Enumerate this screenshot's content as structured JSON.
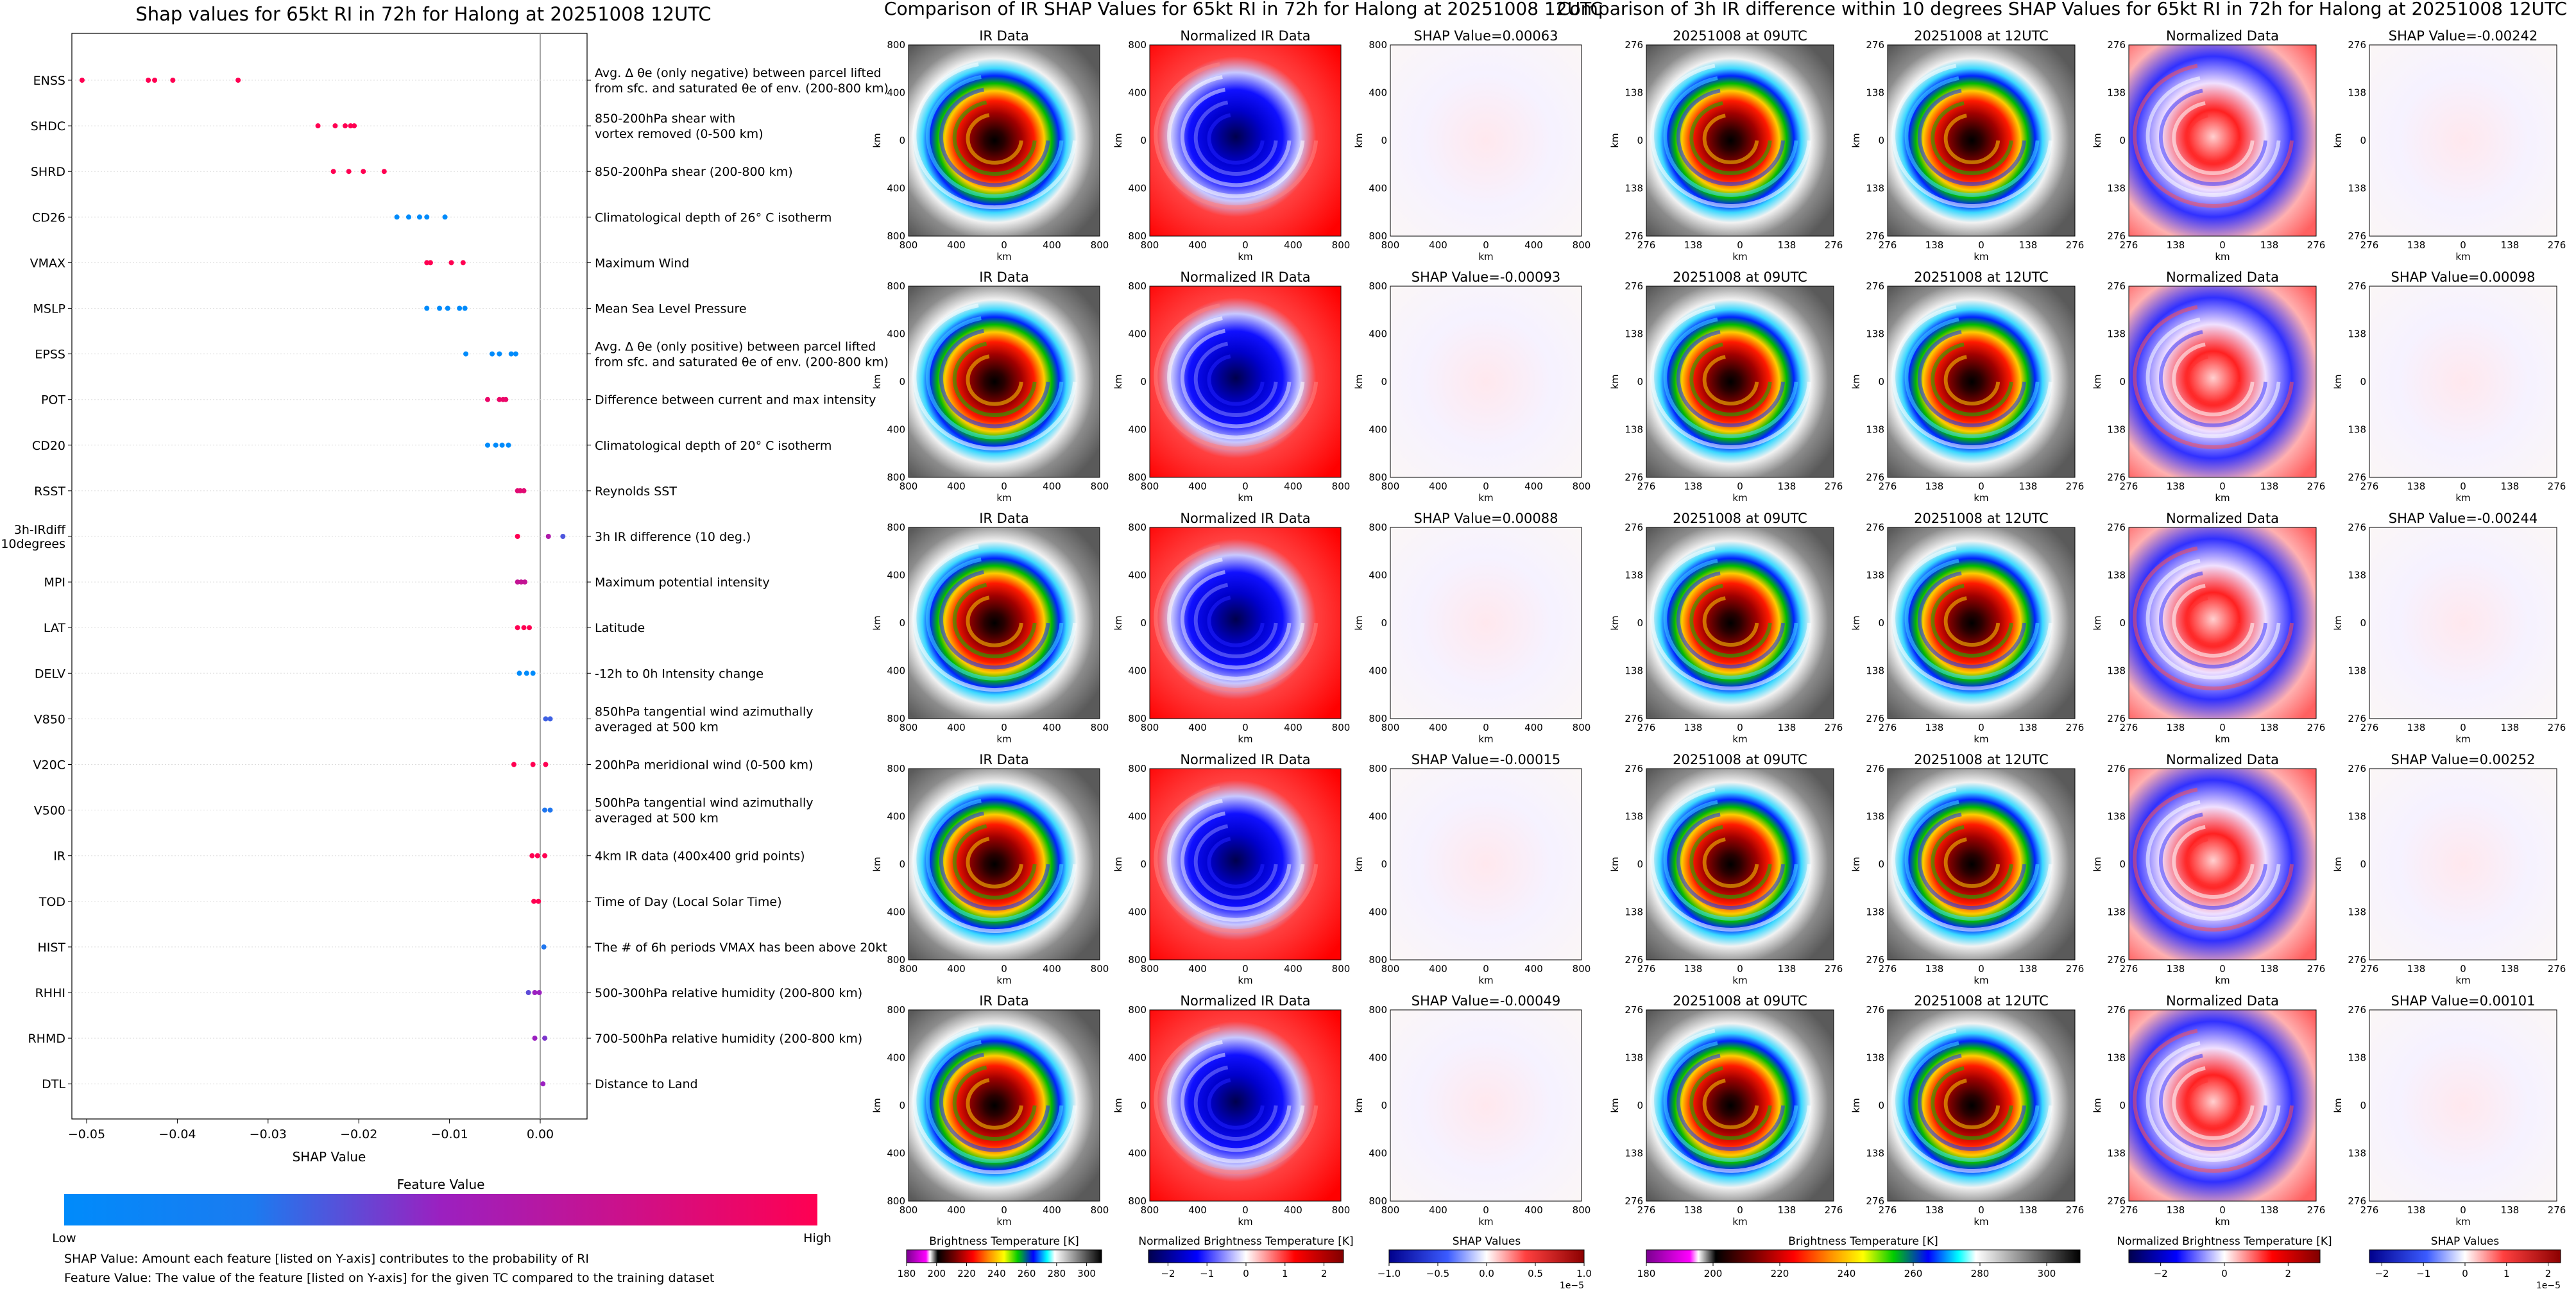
{
  "chart_data": [
    {
      "type": "scatter",
      "title": "Shap values for 65kt RI in 72h for Halong at 20251008 12UTC",
      "xlabel": "SHAP Value",
      "xlim": [
        -0.054,
        0.005
      ],
      "xticks": [
        -0.05,
        -0.04,
        -0.03,
        -0.02,
        -0.01,
        0.0
      ],
      "xtick_labels": [
        "−0.05",
        "−0.04",
        "−0.03",
        "−0.02",
        "−0.01",
        "0.00"
      ],
      "features": [
        {
          "code": "ENSS",
          "desc": [
            "Avg. Δ θe (only negative) between parcel lifted",
            "from sfc. and saturated θe of env. (200-800 km)"
          ],
          "points": [
            [
              -0.0505,
              1
            ],
            [
              -0.0432,
              1
            ],
            [
              -0.0425,
              1
            ],
            [
              -0.0405,
              1
            ],
            [
              -0.0333,
              1
            ]
          ]
        },
        {
          "code": "SHDC",
          "desc": [
            "850-200hPa shear with",
            "vortex removed (0-500 km)"
          ],
          "points": [
            [
              -0.0245,
              1
            ],
            [
              -0.0226,
              1
            ],
            [
              -0.0215,
              1
            ],
            [
              -0.0209,
              1
            ],
            [
              -0.0205,
              1
            ]
          ]
        },
        {
          "code": "SHRD",
          "desc": [
            "850-200hPa shear (200-800 km)"
          ],
          "points": [
            [
              -0.0228,
              1
            ],
            [
              -0.0211,
              1
            ],
            [
              -0.0195,
              1
            ],
            [
              -0.0172,
              1
            ]
          ]
        },
        {
          "code": "CD26",
          "desc": [
            "Climatological depth of 26° C isotherm"
          ],
          "points": [
            [
              -0.0158,
              0
            ],
            [
              -0.0145,
              0
            ],
            [
              -0.0133,
              0
            ],
            [
              -0.0125,
              0
            ],
            [
              -0.0105,
              0
            ]
          ]
        },
        {
          "code": "VMAX",
          "desc": [
            "Maximum Wind"
          ],
          "points": [
            [
              -0.0125,
              1
            ],
            [
              -0.0121,
              1
            ],
            [
              -0.0098,
              1
            ],
            [
              -0.0085,
              1
            ]
          ]
        },
        {
          "code": "MSLP",
          "desc": [
            "Mean Sea Level Pressure"
          ],
          "points": [
            [
              -0.0125,
              0
            ],
            [
              -0.0111,
              0
            ],
            [
              -0.0102,
              0
            ],
            [
              -0.0089,
              0
            ],
            [
              -0.0083,
              0
            ]
          ]
        },
        {
          "code": "EPSS",
          "desc": [
            "Avg. Δ θe (only positive) between parcel lifted",
            "from sfc. and saturated θe of env. (200-800 km)"
          ],
          "points": [
            [
              -0.0082,
              0
            ],
            [
              -0.0053,
              0
            ],
            [
              -0.0045,
              0
            ],
            [
              -0.0032,
              0
            ],
            [
              -0.0027,
              0
            ]
          ]
        },
        {
          "code": "POT",
          "desc": [
            "Difference between current and max intensity"
          ],
          "points": [
            [
              -0.0058,
              0.9
            ],
            [
              -0.0045,
              0.9
            ],
            [
              -0.0041,
              0.9
            ],
            [
              -0.0038,
              0.9
            ]
          ]
        },
        {
          "code": "CD20",
          "desc": [
            "Climatological depth of 20° C isotherm"
          ],
          "points": [
            [
              -0.0058,
              0
            ],
            [
              -0.0049,
              0
            ],
            [
              -0.0042,
              0
            ],
            [
              -0.0035,
              0
            ]
          ]
        },
        {
          "code": "RSST",
          "desc": [
            "Reynolds SST"
          ],
          "points": [
            [
              -0.0025,
              0.85
            ],
            [
              -0.0022,
              0.85
            ],
            [
              -0.0018,
              0.85
            ]
          ]
        },
        {
          "code": "3h-IRdiff\n10degrees",
          "desc": [
            "3h IR difference (10 deg.)"
          ],
          "points": [
            [
              -0.0025,
              1
            ],
            [
              0.0009,
              0.6
            ],
            [
              0.0025,
              0.25
            ]
          ]
        },
        {
          "code": "MPI",
          "desc": [
            "Maximum potential intensity"
          ],
          "points": [
            [
              -0.0025,
              0.7
            ],
            [
              -0.0021,
              0.7
            ],
            [
              -0.0017,
              0.7
            ]
          ]
        },
        {
          "code": "LAT",
          "desc": [
            "Latitude"
          ],
          "points": [
            [
              -0.0025,
              1
            ],
            [
              -0.0018,
              1
            ],
            [
              -0.0012,
              1
            ]
          ]
        },
        {
          "code": "DELV",
          "desc": [
            "-12h to 0h Intensity change"
          ],
          "points": [
            [
              -0.0023,
              0
            ],
            [
              -0.0015,
              0
            ],
            [
              -0.0008,
              0
            ]
          ]
        },
        {
          "code": "V850",
          "desc": [
            "850hPa tangential wind azimuthally",
            "averaged at 500 km"
          ],
          "points": [
            [
              0.0006,
              0.2
            ],
            [
              0.0011,
              0.2
            ]
          ]
        },
        {
          "code": "V20C",
          "desc": [
            "200hPa meridional wind (0-500 km)"
          ],
          "points": [
            [
              -0.0029,
              1
            ],
            [
              -0.0008,
              1
            ],
            [
              0.0006,
              1
            ]
          ]
        },
        {
          "code": "V500",
          "desc": [
            "500hPa tangential wind azimuthally",
            "averaged at 500 km"
          ],
          "points": [
            [
              0.0005,
              0.1
            ],
            [
              0.0011,
              0.1
            ]
          ]
        },
        {
          "code": "IR",
          "desc": [
            "4km IR data (400x400 grid points)"
          ],
          "points": [
            [
              -0.0009,
              1
            ],
            [
              -0.0003,
              1
            ],
            [
              0.0005,
              1
            ]
          ]
        },
        {
          "code": "TOD",
          "desc": [
            "Time of Day (Local Solar Time)"
          ],
          "points": [
            [
              -0.0007,
              1
            ],
            [
              -0.0002,
              1
            ]
          ]
        },
        {
          "code": "HIST",
          "desc": [
            "The # of 6h periods VMAX has been above 20kt"
          ],
          "points": [
            [
              0.0004,
              0.1
            ]
          ]
        },
        {
          "code": "RHHI",
          "desc": [
            "500-300hPa relative humidity (200-800 km)"
          ],
          "points": [
            [
              -0.0013,
              0.3
            ],
            [
              -0.0006,
              0.5
            ],
            [
              -0.0001,
              0.5
            ]
          ]
        },
        {
          "code": "RHMD",
          "desc": [
            "700-500hPa relative humidity (200-800 km)"
          ],
          "points": [
            [
              -0.0006,
              0.5
            ],
            [
              0.0005,
              0.4
            ]
          ]
        },
        {
          "code": "DTL",
          "desc": [
            "Distance to Land"
          ],
          "points": [
            [
              0.0003,
              0.5
            ]
          ]
        }
      ],
      "colorbar": {
        "title": "Feature Value",
        "low": "Low",
        "high": "High"
      },
      "notes": [
        "SHAP Value: Amount each feature [listed on Y-axis] contributes to the probability of RI",
        "Feature Value: The value of the feature [listed on Y-axis] for the given TC compared to the training dataset"
      ]
    },
    {
      "type": "heatmap",
      "title": "Comparison of IR SHAP Values for 65kt RI in 72h for Halong at 20251008 12UTC",
      "panel_titles": [
        "IR Data",
        "Normalized IR Data"
      ],
      "shap_values": [
        "SHAP Value=0.00063",
        "SHAP Value=-0.00093",
        "SHAP Value=0.00088",
        "SHAP Value=-0.00015",
        "SHAP Value=-0.00049"
      ],
      "axis_label": "km",
      "ticks": [
        "800",
        "400",
        "0",
        "400",
        "800"
      ],
      "colorbars": [
        {
          "label": "Brightness Temperature [K]",
          "ticks": [
            "180",
            "200",
            "220",
            "240",
            "260",
            "280",
            "300"
          ],
          "range": [
            180,
            310
          ]
        },
        {
          "label": "Normalized Brightness Temperature [K]",
          "ticks": [
            "−2",
            "−1",
            "0",
            "1",
            "2"
          ],
          "range": [
            -2.5,
            2.5
          ]
        },
        {
          "label": "SHAP Values",
          "ticks": [
            "−1.0",
            "−0.5",
            "0.0",
            "0.5",
            "1.0"
          ],
          "range": [
            -1,
            1
          ],
          "exponent": "1e−5"
        }
      ]
    },
    {
      "type": "heatmap",
      "title": "Comparison of 3h IR difference within 10 degrees SHAP Values for 65kt RI in 72h for Halong at 20251008 12UTC",
      "panel_titles": [
        "20251008 at 09UTC",
        "20251008 at 12UTC",
        "Normalized Data"
      ],
      "shap_values": [
        "SHAP Value=-0.00242",
        "SHAP Value=0.00098",
        "SHAP Value=-0.00244",
        "SHAP Value=0.00252",
        "SHAP Value=0.00101"
      ],
      "axis_label": "km",
      "ticks": [
        "276",
        "138",
        "0",
        "138",
        "276"
      ],
      "colorbars": [
        {
          "label": "Brightness Temperature [K]",
          "ticks": [
            "180",
            "200",
            "220",
            "240",
            "260",
            "280",
            "300"
          ],
          "range": [
            180,
            310
          ]
        },
        {
          "label": "Normalized Brightness Temperature [K]",
          "ticks": [
            "−2",
            "0",
            "2"
          ],
          "range": [
            -3,
            3
          ]
        },
        {
          "label": "SHAP Values",
          "ticks": [
            "−2",
            "−1",
            "0",
            "1",
            "2"
          ],
          "range": [
            -2.3,
            2.3
          ],
          "exponent": "1e−5"
        }
      ]
    }
  ],
  "colors": {
    "low": "#008bfb",
    "mid": "#9b20c0",
    "high": "#ff0052",
    "grid": "#dddddd"
  }
}
